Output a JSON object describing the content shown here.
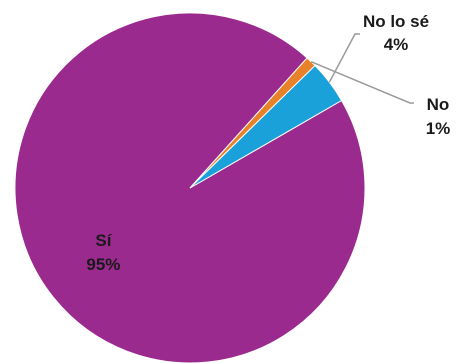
{
  "chart_data": {
    "type": "pie",
    "title": "",
    "slices": [
      {
        "label": "Sí",
        "value": 95,
        "value_label": "95%",
        "color": "#9B2A8E",
        "label_placement": "inside"
      },
      {
        "label": "No",
        "value": 1,
        "value_label": "1%",
        "color": "#E8822A",
        "label_placement": "outside"
      },
      {
        "label": "No lo sé",
        "value": 4,
        "value_label": "4%",
        "color": "#1BA1D9",
        "label_placement": "outside"
      }
    ],
    "start_angle_deg": 60,
    "direction": "clockwise",
    "slice_border_color": "#ffffff",
    "leader_line_color": "#9a9a9a"
  }
}
